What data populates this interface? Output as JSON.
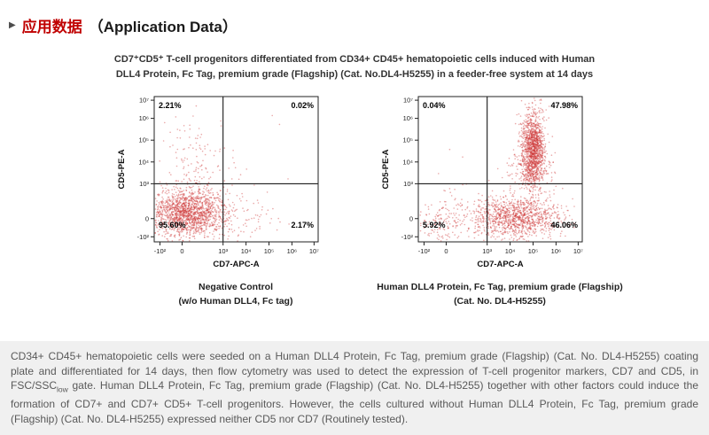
{
  "icons": {
    "section_arrow": "▶"
  },
  "colors": {
    "accent_red": "#c00000",
    "dot_color": "#cc3333",
    "panel_bg": "#f0f0f0",
    "body_text": "#595959"
  },
  "header": {
    "title_zh": "应用数据",
    "title_en": "（Application Data）"
  },
  "figure": {
    "title_line1": "CD7⁺CD5⁺ T-cell progenitors differentiated from CD34+ CD45+ hematopoietic cells induced with Human",
    "title_line2": "DLL4 Protein, Fc Tag, premium grade (Flagship) (Cat. No.DL4-H5255) in a feeder-free system at 14 days"
  },
  "chart_data": [
    {
      "type": "scatter",
      "name": "negative_control_flow_plot",
      "xlabel": "CD7-APC-A",
      "ylabel": "CD5-PE-A",
      "x_ticks": [
        {
          "label": "-10²",
          "f": 0.035
        },
        {
          "label": "0",
          "f": 0.17
        },
        {
          "label": "10³",
          "f": 0.42
        },
        {
          "label": "10⁴",
          "f": 0.56
        },
        {
          "label": "10⁵",
          "f": 0.7
        },
        {
          "label": "10⁶",
          "f": 0.84
        },
        {
          "label": "10⁷",
          "f": 0.975
        }
      ],
      "y_ticks": [
        {
          "label": "-10²",
          "f": 0.035
        },
        {
          "label": "0",
          "f": 0.16
        },
        {
          "label": "10³",
          "f": 0.4
        },
        {
          "label": "10⁴",
          "f": 0.55
        },
        {
          "label": "10⁵",
          "f": 0.7
        },
        {
          "label": "10⁶",
          "f": 0.85
        },
        {
          "label": "10⁷",
          "f": 0.975
        }
      ],
      "gate": {
        "x": 0.42,
        "y": 0.4
      },
      "quadrant_stats": {
        "top_left": "2.21%",
        "top_right": "0.02%",
        "bottom_left": "95.60%",
        "bottom_right": "2.17%"
      },
      "clusters": [
        {
          "n": 1500,
          "cx": 0.21,
          "cy": 0.2,
          "sx": 0.115,
          "sy": 0.08
        },
        {
          "n": 250,
          "cx": 0.22,
          "cy": 0.22,
          "sx": 0.19,
          "sy": 0.15
        },
        {
          "n": 90,
          "cx": 0.23,
          "cy": 0.6,
          "sx": 0.09,
          "sy": 0.13
        },
        {
          "n": 60,
          "cx": 0.55,
          "cy": 0.17,
          "sx": 0.11,
          "sy": 0.08
        },
        {
          "n": 2,
          "cx": 0.7,
          "cy": 0.75,
          "sx": 0.05,
          "sy": 0.05
        }
      ],
      "caption_line1": "Negative Control",
      "caption_line2": "(w/o Human DLL4, Fc tag)"
    },
    {
      "type": "scatter",
      "name": "dll4_treated_flow_plot",
      "xlabel": "CD7-APC-A",
      "ylabel": "CD5-PE-A",
      "x_ticks": [
        {
          "label": "-10²",
          "f": 0.035
        },
        {
          "label": "0",
          "f": 0.17
        },
        {
          "label": "10³",
          "f": 0.42
        },
        {
          "label": "10⁴",
          "f": 0.56
        },
        {
          "label": "10⁵",
          "f": 0.7
        },
        {
          "label": "10⁶",
          "f": 0.84
        },
        {
          "label": "10⁷",
          "f": 0.975
        }
      ],
      "y_ticks": [
        {
          "label": "-10²",
          "f": 0.035
        },
        {
          "label": "0",
          "f": 0.16
        },
        {
          "label": "10³",
          "f": 0.4
        },
        {
          "label": "10⁴",
          "f": 0.55
        },
        {
          "label": "10⁵",
          "f": 0.7
        },
        {
          "label": "10⁶",
          "f": 0.85
        },
        {
          "label": "10⁷",
          "f": 0.975
        }
      ],
      "gate": {
        "x": 0.42,
        "y": 0.4
      },
      "quadrant_stats": {
        "top_left": "0.04%",
        "top_right": "47.98%",
        "bottom_left": "5.92%",
        "bottom_right": "46.06%"
      },
      "clusters": [
        {
          "n": 1200,
          "cx": 0.7,
          "cy": 0.65,
          "sx": 0.035,
          "sy": 0.13
        },
        {
          "n": 260,
          "cx": 0.69,
          "cy": 0.5,
          "sx": 0.06,
          "sy": 0.06
        },
        {
          "n": 1000,
          "cx": 0.6,
          "cy": 0.17,
          "sx": 0.13,
          "sy": 0.07
        },
        {
          "n": 200,
          "cx": 0.55,
          "cy": 0.2,
          "sx": 0.18,
          "sy": 0.1
        },
        {
          "n": 170,
          "cx": 0.16,
          "cy": 0.14,
          "sx": 0.09,
          "sy": 0.07
        },
        {
          "n": 2,
          "cx": 0.22,
          "cy": 0.62,
          "sx": 0.04,
          "sy": 0.04
        }
      ],
      "caption_line1": "Human DLL4 Protein, Fc Tag, premium grade (Flagship)",
      "caption_line2": "(Cat. No. DL4-H5255)"
    }
  ],
  "description": {
    "part1": "CD34+ CD45+ hematopoietic cells were seeded on a Human DLL4 Protein, Fc Tag, premium grade (Flagship) (Cat. No. DL4-H5255) coating plate and differentiated for 14 days, then flow cytometry was used to detect the expression of T-cell progenitor markers, CD7 and CD5, in FSC/SSC",
    "sub": "low",
    "part2": " gate. Human DLL4 Protein, Fc Tag, premium grade (Flagship) (Cat. No. DL4-H5255) together with other factors could induce the formation of CD7+ and CD7+ CD5+ T-cell progenitors. However, the cells cultured without Human DLL4 Protein, Fc Tag, premium grade (Flagship) (Cat. No. DL4-H5255) expressed neither CD5 nor CD7 (Routinely tested)."
  }
}
